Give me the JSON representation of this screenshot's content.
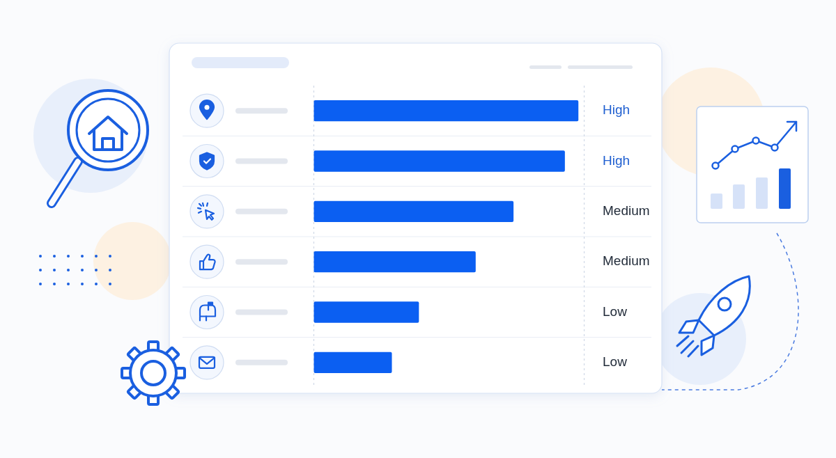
{
  "chart_data": {
    "type": "bar",
    "orientation": "horizontal",
    "categories": [
      null,
      null,
      null,
      null,
      null,
      null
    ],
    "values": [
      98,
      93,
      74,
      60,
      39,
      29
    ],
    "value_labels": [
      "High",
      "High",
      "Medium",
      "Medium",
      "Low",
      "Low"
    ],
    "data_labels": true,
    "color": "#0b5ff2",
    "xlim": [
      0,
      100
    ],
    "xticks": [
      0,
      100
    ],
    "grid": true,
    "tick_labels": false
  }
}
